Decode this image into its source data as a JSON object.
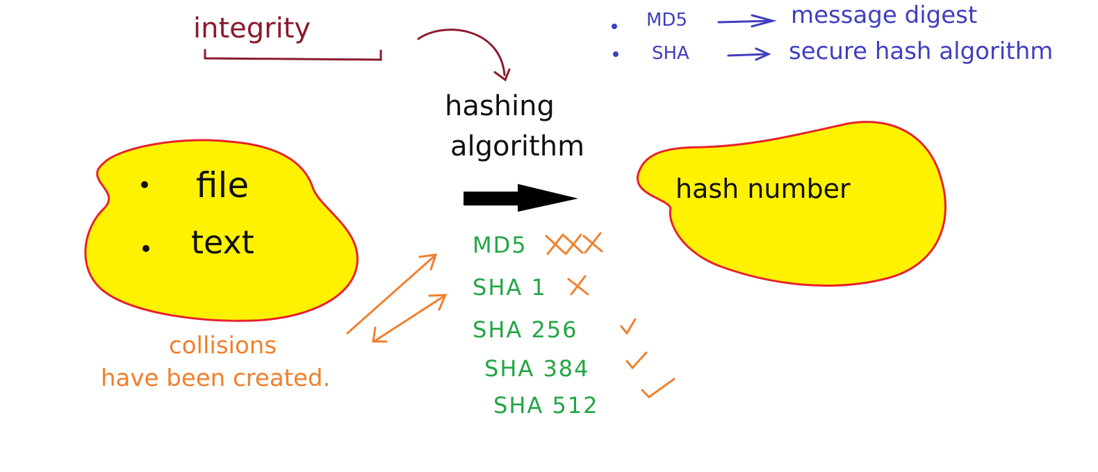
{
  "heading": {
    "text": "integrity"
  },
  "process": {
    "line1": "hashing",
    "line2": "algorithm"
  },
  "input_blob": {
    "items": [
      "file",
      "text"
    ]
  },
  "output_blob": {
    "text": "hash number"
  },
  "definitions": [
    {
      "abbr": "MD5",
      "meaning": "message digest"
    },
    {
      "abbr": "SHA",
      "meaning": "secure hash algorithm"
    }
  ],
  "algorithms": [
    {
      "name": "MD5",
      "mark": "XXX"
    },
    {
      "name": "SHA 1",
      "mark": "X"
    },
    {
      "name": "SHA 256",
      "mark": "check"
    },
    {
      "name": "SHA 384",
      "mark": "check"
    },
    {
      "name": "SHA 512",
      "mark": "check"
    }
  ],
  "note": {
    "line1": "collisions",
    "line2": "have been created."
  },
  "colors": {
    "blob_fill": "#fff200",
    "blob_stroke": "#e8202a",
    "heading": "#8b1a2b",
    "definitions": "#3f3fc0",
    "algorithms": "#22a544",
    "marks": "#f07f2c",
    "ink": "#111111"
  }
}
